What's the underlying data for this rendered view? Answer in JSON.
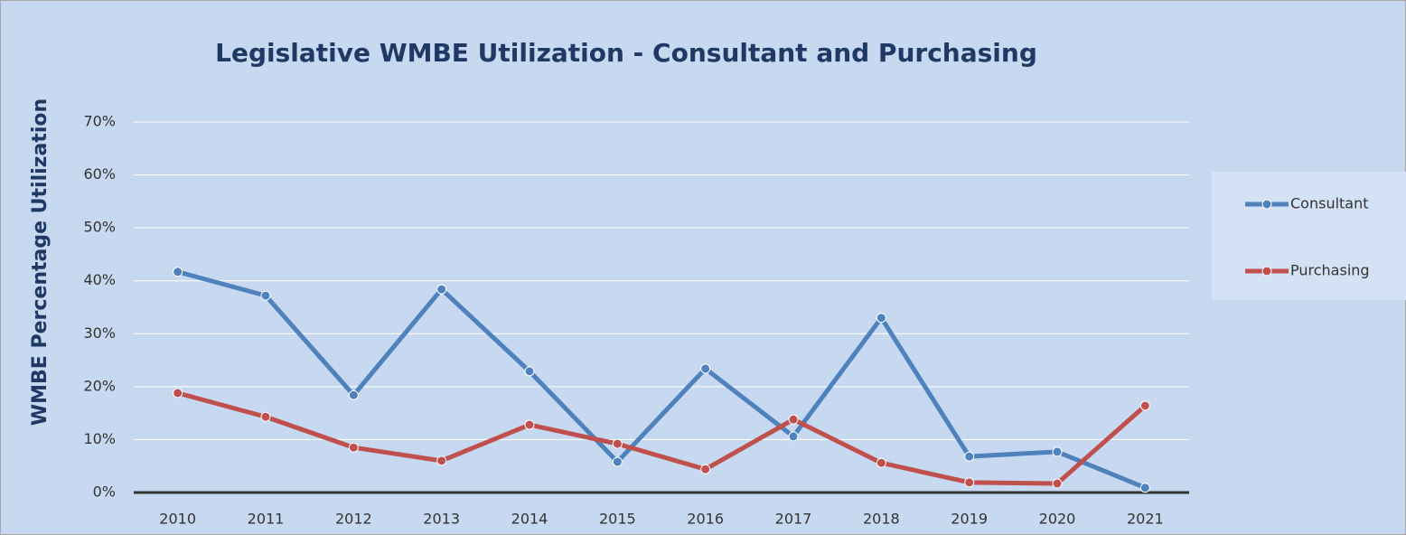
{
  "chart_data": {
    "type": "line",
    "title": "Legislative WMBE Utilization - Consultant and Purchasing",
    "y_label": "WMBE Percentage Utilization",
    "categories": [
      "2010",
      "2011",
      "2012",
      "2013",
      "2014",
      "2015",
      "2016",
      "2017",
      "2018",
      "2019",
      "2020",
      "2021"
    ],
    "series": [
      {
        "name": "Consultant",
        "color": "#4f81bd",
        "values": [
          41.7,
          37.2,
          18.4,
          38.4,
          22.9,
          5.8,
          23.4,
          10.6,
          33.0,
          6.8,
          7.7,
          0.9
        ]
      },
      {
        "name": "Purchasing",
        "color": "#c0504d",
        "values": [
          18.8,
          14.3,
          8.5,
          6.0,
          12.8,
          9.2,
          4.4,
          13.8,
          5.6,
          1.9,
          1.7,
          16.4
        ]
      }
    ],
    "ylim": [
      0,
      70
    ],
    "yticks": [
      {
        "value": 0,
        "label": "0%"
      },
      {
        "value": 10,
        "label": "10%"
      },
      {
        "value": 20,
        "label": "20%"
      },
      {
        "value": 30,
        "label": "30%"
      },
      {
        "value": 40,
        "label": "40%"
      },
      {
        "value": 50,
        "label": "50%"
      },
      {
        "value": 60,
        "label": "60%"
      },
      {
        "value": 70,
        "label": "70%"
      }
    ],
    "grid": true,
    "legend": "right"
  }
}
